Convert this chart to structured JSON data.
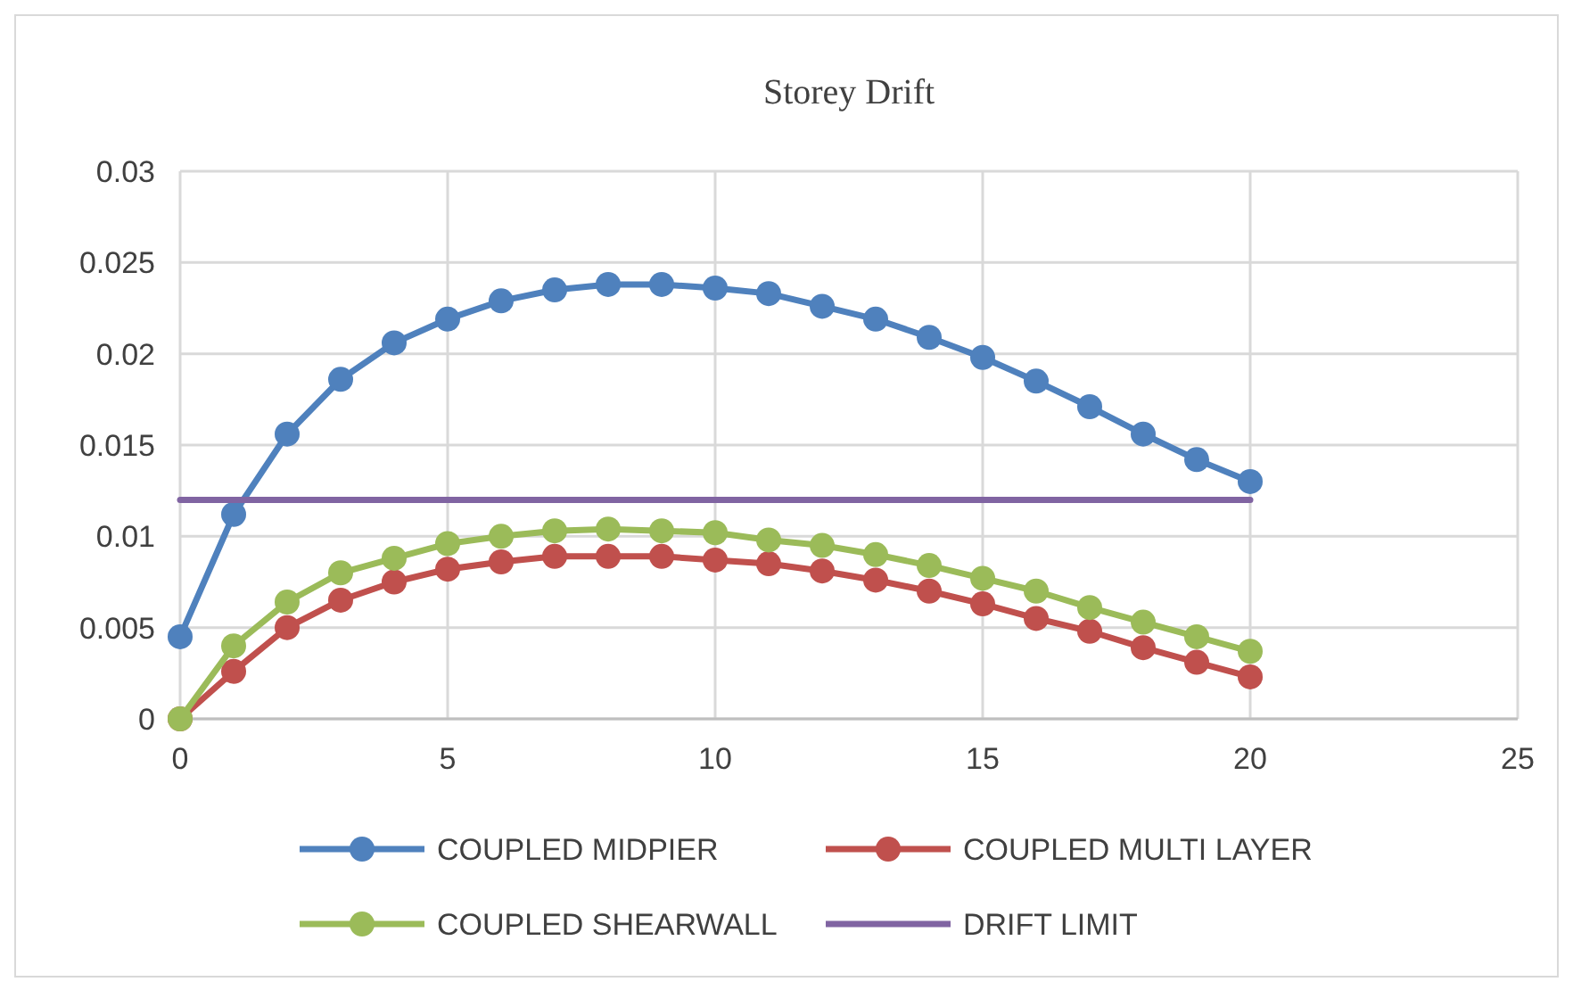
{
  "chart_data": {
    "type": "line",
    "title": "Storey Drift",
    "x": [
      0,
      1,
      2,
      3,
      4,
      5,
      6,
      7,
      8,
      9,
      10,
      11,
      12,
      13,
      14,
      15,
      16,
      17,
      18,
      19,
      20
    ],
    "xlim": [
      0,
      25
    ],
    "xticks": [
      0,
      5,
      10,
      15,
      20,
      25
    ],
    "ylim": [
      0,
      0.03
    ],
    "yticks": [
      0,
      0.005,
      0.01,
      0.015,
      0.02,
      0.025,
      0.03
    ],
    "grid": true,
    "legend": "bottom",
    "marker": "circle",
    "series": [
      {
        "name": "COUPLED MIDPIER",
        "color": "#4f81bd",
        "values": [
          0.0045,
          0.0112,
          0.0156,
          0.0186,
          0.0206,
          0.0219,
          0.0229,
          0.0235,
          0.0238,
          0.0238,
          0.0236,
          0.0233,
          0.0226,
          0.0219,
          0.0209,
          0.0198,
          0.0185,
          0.0171,
          0.0156,
          0.0142,
          0.013
        ]
      },
      {
        "name": "COUPLED MULTI LAYER",
        "color": "#c0504d",
        "values": [
          0,
          0.0026,
          0.005,
          0.0065,
          0.0075,
          0.0082,
          0.0086,
          0.0089,
          0.0089,
          0.0089,
          0.0087,
          0.0085,
          0.0081,
          0.0076,
          0.007,
          0.0063,
          0.0055,
          0.0048,
          0.0039,
          0.0031,
          0.0023
        ]
      },
      {
        "name": "COUPLED SHEARWALL",
        "color": "#9bbb59",
        "values": [
          0,
          0.004,
          0.0064,
          0.008,
          0.0088,
          0.0096,
          0.01,
          0.0103,
          0.0104,
          0.0103,
          0.0102,
          0.0098,
          0.0095,
          0.009,
          0.0084,
          0.0077,
          0.007,
          0.0061,
          0.0053,
          0.0045,
          0.0037
        ]
      },
      {
        "name": "DRIFT LIMIT",
        "color": "#8064a2",
        "marker": "none",
        "values": [
          0.012,
          0.012,
          0.012,
          0.012,
          0.012,
          0.012,
          0.012,
          0.012,
          0.012,
          0.012,
          0.012,
          0.012,
          0.012,
          0.012,
          0.012,
          0.012,
          0.012,
          0.012,
          0.012,
          0.012,
          0.012
        ]
      }
    ]
  }
}
